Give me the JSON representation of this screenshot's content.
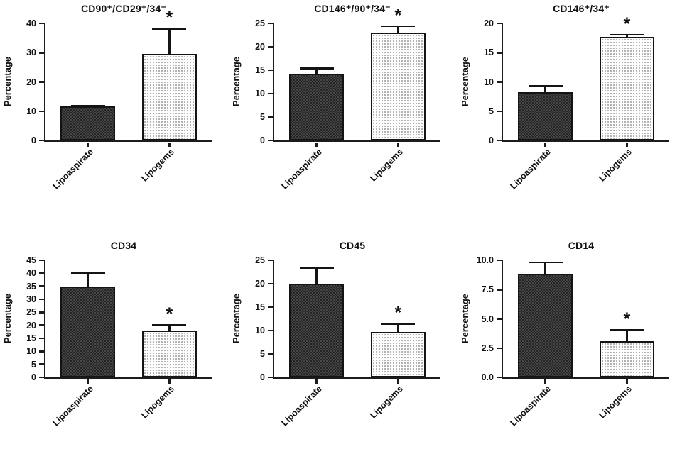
{
  "figure": {
    "description_title": "Flow cytometry surface marker percentages, Lipoaspirate vs Lipogems",
    "significance_marker": "*"
  },
  "colors": {
    "background": "#ffffff",
    "axis": "#1c1c1c",
    "text": "#111111",
    "bar_dark_fill": "#474747",
    "bar_dark_pattern": "#242424",
    "bar_light_fill": "#fdfdfd",
    "bar_light_pattern": "#9a9a9a"
  },
  "chart_data": [
    {
      "type": "bar",
      "title": "CD90⁺/CD29⁺/34⁻",
      "ylabel": "Percentage",
      "xlabel": "",
      "categories": [
        "Lipoaspirate",
        "Lipogems"
      ],
      "values": [
        11.7,
        29.5
      ],
      "errors": [
        0.4,
        9.0
      ],
      "significant": [
        false,
        true
      ],
      "sig_marker": "*",
      "ylim": [
        0,
        40
      ],
      "yticks": [
        "0",
        "10",
        "20",
        "30",
        "40"
      ],
      "grid": "off",
      "legend": "none"
    },
    {
      "type": "bar",
      "title": "CD146⁺/90⁺/34⁻",
      "ylabel": "Percentage",
      "xlabel": "",
      "categories": [
        "Lipoaspirate",
        "Lipogems"
      ],
      "values": [
        14.2,
        23.1
      ],
      "errors": [
        1.4,
        1.5
      ],
      "significant": [
        false,
        true
      ],
      "sig_marker": "*",
      "ylim": [
        0,
        25
      ],
      "yticks": [
        "0",
        "5",
        "10",
        "15",
        "20",
        "25"
      ],
      "grid": "off",
      "legend": "none"
    },
    {
      "type": "bar",
      "title": "CD146⁺/34⁺",
      "ylabel": "Percentage",
      "xlabel": "",
      "categories": [
        "Lipoaspirate",
        "Lipogems"
      ],
      "values": [
        8.3,
        17.7
      ],
      "errors": [
        1.2,
        0.5
      ],
      "significant": [
        false,
        true
      ],
      "sig_marker": "*",
      "ylim": [
        0,
        20
      ],
      "yticks": [
        "0",
        "5",
        "10",
        "15",
        "20"
      ],
      "grid": "off",
      "legend": "none"
    },
    {
      "type": "bar",
      "title": "CD34",
      "ylabel": "Percentage",
      "xlabel": "",
      "categories": [
        "Lipoaspirate",
        "Lipogems"
      ],
      "values": [
        35,
        18
      ],
      "errors": [
        5.5,
        2.5
      ],
      "significant": [
        false,
        true
      ],
      "sig_marker": "*",
      "ylim": [
        0,
        45
      ],
      "yticks": [
        "0",
        "5",
        "10",
        "15",
        "20",
        "25",
        "30",
        "35",
        "40",
        "45"
      ],
      "grid": "off",
      "legend": "none"
    },
    {
      "type": "bar",
      "title": "CD45",
      "ylabel": "Percentage",
      "xlabel": "",
      "categories": [
        "Lipoaspirate",
        "Lipogems"
      ],
      "values": [
        20,
        9.7
      ],
      "errors": [
        3.5,
        1.9
      ],
      "significant": [
        false,
        true
      ],
      "sig_marker": "*",
      "ylim": [
        0,
        25
      ],
      "yticks": [
        "0",
        "5",
        "10",
        "15",
        "20",
        "25"
      ],
      "grid": "off",
      "legend": "none"
    },
    {
      "type": "bar",
      "title": "CD14",
      "ylabel": "Percentage",
      "xlabel": "",
      "categories": [
        "Lipoaspirate",
        "Lipogems"
      ],
      "values": [
        8.85,
        3.1
      ],
      "errors": [
        1.05,
        1.0
      ],
      "significant": [
        false,
        true
      ],
      "sig_marker": "*",
      "ylim": [
        0,
        10
      ],
      "yticks": [
        "0.0",
        "2.5",
        "5.0",
        "7.5",
        "10.0"
      ],
      "grid": "off",
      "legend": "none"
    }
  ]
}
